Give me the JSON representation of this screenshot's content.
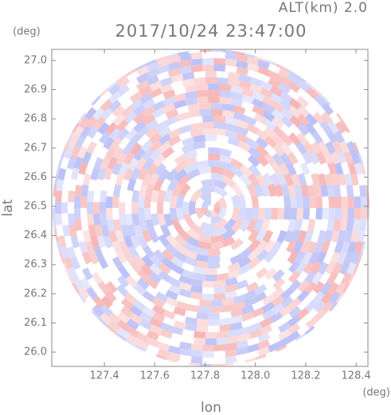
{
  "chart_data": {
    "type": "radar-image",
    "title": "2017/10/24 23:47:00",
    "subtitle": "ALT(km) 2.0",
    "x_label": "lon",
    "y_label": "lat",
    "x_unit": "(deg)",
    "y_unit": "(deg)",
    "xlim": [
      127.191,
      128.447
    ],
    "ylim": [
      25.951,
      27.038
    ],
    "xticks": [
      127.4,
      127.6,
      127.8,
      {
        "value": 128,
        "label": "128.0"
      },
      128.2,
      128.4
    ],
    "yticks": [
      {
        "value": 26,
        "label": "26.0"
      },
      26.1,
      26.2,
      26.3,
      26.4,
      26.5,
      26.6,
      26.7,
      26.8,
      26.9,
      {
        "value": 27,
        "label": "27.0"
      }
    ],
    "grid": false
  }
}
